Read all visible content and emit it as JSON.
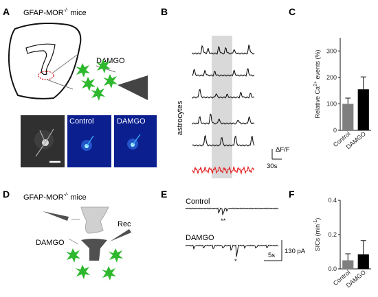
{
  "panels": {
    "A": {
      "letter": "A",
      "title_prefix": "GFAP-MOR",
      "title_sup": "-/-",
      "title_suffix": " mice",
      "drug_label": "DAMGO",
      "image_labels": [
        "Control",
        "DAMGO"
      ]
    },
    "B": {
      "letter": "B",
      "ylabel": "astrocytes",
      "scale_y": "ΔF/F",
      "scale_x": "30s",
      "colors": {
        "trace": "#111111",
        "control_trace": "#e31a1c",
        "shade": "#d9d9d9"
      }
    },
    "C": {
      "letter": "C",
      "ylabel_prefix": "Relative Ca",
      "ylabel_sup": "2+",
      "ylabel_suffix": " events (%)"
    },
    "D": {
      "letter": "D",
      "title_prefix": "GFAP-MOR",
      "title_sup": "-/-",
      "title_suffix": " mice",
      "rec_label": "Rec",
      "drug_label": "DAMGO"
    },
    "E": {
      "letter": "E",
      "trace_labels": [
        "Control",
        "DAMGO"
      ],
      "markers": [
        "**",
        "*"
      ],
      "scale_y": "130 pA",
      "scale_x": "5s"
    },
    "F": {
      "letter": "F",
      "ylabel_prefix": "SICs (min",
      "ylabel_sup": "-1",
      "ylabel_suffix": ")"
    }
  },
  "chart_data": [
    {
      "panel": "C",
      "type": "bar",
      "categories": [
        "Control",
        "DAMGO"
      ],
      "values": [
        100,
        155
      ],
      "errors": [
        22,
        47
      ],
      "yticks": [
        "0",
        "100",
        "200",
        "300"
      ],
      "ylim": [
        0,
        350
      ],
      "colors": [
        "#7f7f7f",
        "#000000"
      ]
    },
    {
      "panel": "F",
      "type": "bar",
      "categories": [
        "Control",
        "DAMGO"
      ],
      "values": [
        0.05,
        0.085
      ],
      "errors": [
        0.038,
        0.08
      ],
      "yticks": [
        "0.0",
        "0.2",
        "0.4"
      ],
      "ylim": [
        0,
        0.4
      ],
      "colors": [
        "#7f7f7f",
        "#000000"
      ]
    }
  ]
}
